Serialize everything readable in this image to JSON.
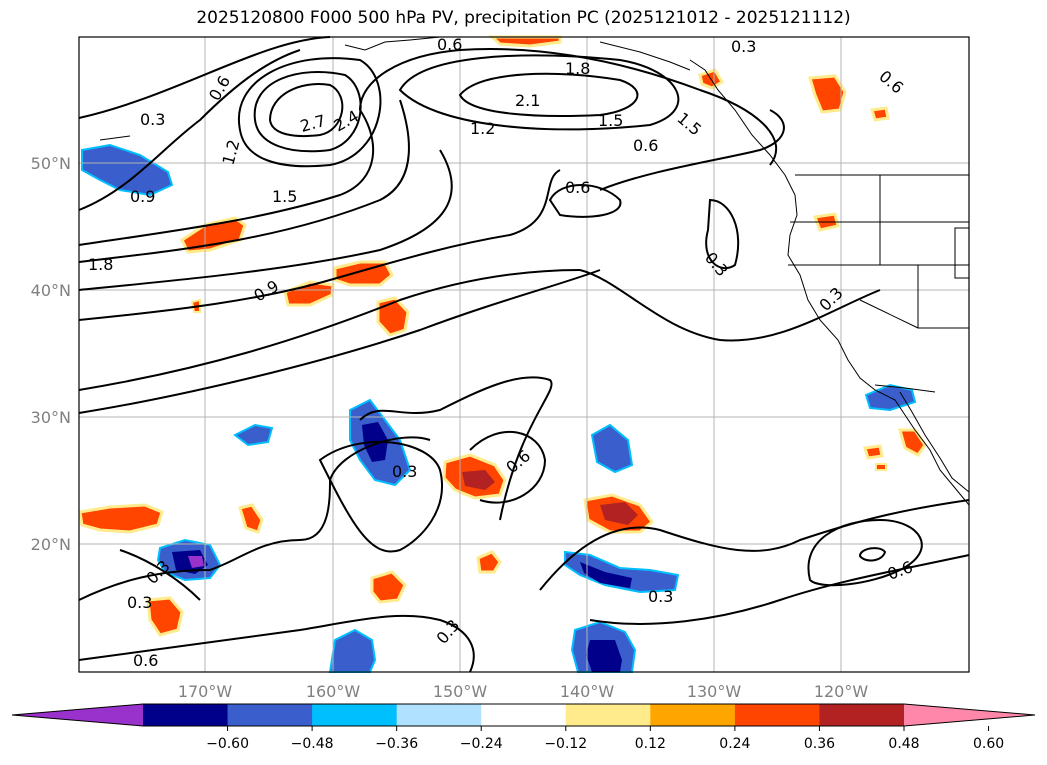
{
  "title": "2025120800 F000 500 hPa PV, precipitation PC (2025121012 - 2025121112)",
  "lat_labels": [
    "50°N",
    "40°N",
    "30°N",
    "20°N"
  ],
  "lon_labels": [
    "170°W",
    "160°W",
    "150°W",
    "140°W",
    "130°W",
    "120°W"
  ],
  "colorbar": {
    "colors": [
      "#9932cc",
      "#00008b",
      "#3a5fcd",
      "#00bfff",
      "#b0e2ff",
      "#ffffff",
      "#ffeb8c",
      "#ffa500",
      "#ff4500",
      "#b22222",
      "#ff88aa"
    ],
    "tick_labels": [
      "−0.60",
      "−0.48",
      "−0.36",
      "−0.24",
      "−0.12",
      "0.12",
      "0.24",
      "0.36",
      "0.48",
      "0.60"
    ]
  },
  "contour_labels": [
    "0.3",
    "0.6",
    "0.9",
    "1.2",
    "1.5",
    "1.8",
    "2.1",
    "2.4",
    "2.7",
    "0.6",
    "1.8",
    "1.5",
    "0.3",
    "0.6",
    "0.3",
    "0.9",
    "0.3",
    "0.6",
    "0.3",
    "0.3",
    "0.6",
    "0.6",
    "0.3",
    "0.3",
    "0.3",
    "0.6",
    "1.2",
    "1.5",
    "0.6"
  ]
}
